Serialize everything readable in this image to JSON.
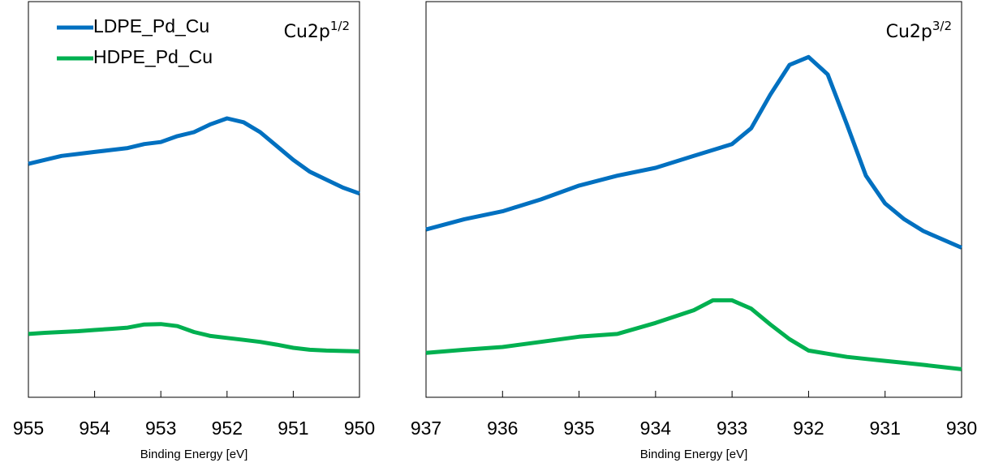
{
  "chart_data": [
    {
      "type": "line",
      "xlabel": "Binding Energy [eV]",
      "annotation": {
        "text": "Cu2p",
        "superscript": "1/2"
      },
      "xlim": [
        955,
        950
      ],
      "xticks": [
        955,
        954,
        953,
        952,
        951,
        950
      ],
      "ylim": [
        0,
        100
      ],
      "legend": "upper left",
      "x": [
        955,
        954.75,
        954.5,
        954.25,
        954,
        953.75,
        953.5,
        953.25,
        953,
        952.75,
        952.5,
        952.25,
        952,
        951.75,
        951.5,
        951.25,
        951,
        950.75,
        950.5,
        950.25,
        950
      ],
      "series": [
        {
          "name": "LDPE_Pd_Cu",
          "color": "#0070c0",
          "values": [
            59,
            60,
            61,
            61.5,
            62,
            62.5,
            63,
            64,
            64.5,
            66,
            67,
            69,
            70.5,
            69.5,
            67,
            63.5,
            60,
            57,
            55,
            53,
            51.5
          ]
        },
        {
          "name": "HDPE_Pd_Cu",
          "color": "#00b050",
          "values": [
            16,
            16.3,
            16.5,
            16.7,
            17,
            17.3,
            17.6,
            18.4,
            18.5,
            18,
            16.5,
            15.5,
            15,
            14.5,
            14,
            13.3,
            12.5,
            12,
            11.8,
            11.7,
            11.6
          ]
        }
      ]
    },
    {
      "type": "line",
      "xlabel": "Binding Energy [eV]",
      "annotation": {
        "text": "Cu2p",
        "superscript": "3/2"
      },
      "xlim": [
        937,
        930
      ],
      "xticks": [
        937,
        936,
        935,
        934,
        933,
        932,
        931,
        930
      ],
      "ylim": [
        0,
        100
      ],
      "x": [
        937,
        936.5,
        936,
        935.5,
        935,
        934.5,
        934,
        933.5,
        933.25,
        933,
        932.75,
        932.5,
        932.25,
        932,
        931.75,
        931.5,
        931.25,
        931,
        930.75,
        930.5,
        930
      ],
      "series": [
        {
          "color": "#0070c0",
          "values": [
            42.4,
            45,
            47,
            50,
            53.5,
            56,
            58,
            61,
            62.5,
            64,
            68,
            76.5,
            84,
            86,
            81.6,
            69,
            56,
            49,
            45,
            42,
            37.8
          ]
        },
        {
          "color": "#00b050",
          "values": [
            11.2,
            12,
            12.7,
            14,
            15.3,
            16,
            18.8,
            22,
            24.5,
            24.5,
            22.4,
            18.4,
            14.7,
            11.8,
            11,
            10.2,
            9.7,
            9.2,
            8.7,
            8.2,
            7.1
          ]
        }
      ]
    }
  ]
}
